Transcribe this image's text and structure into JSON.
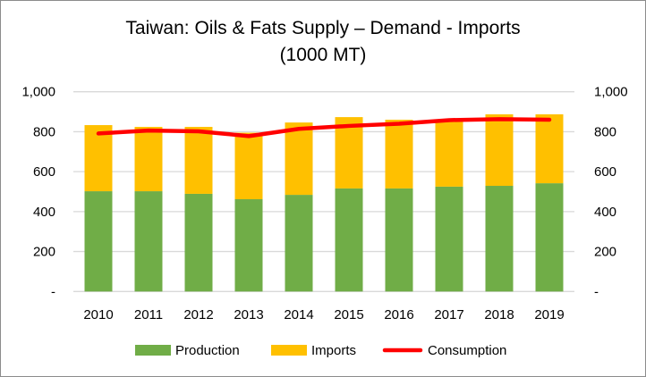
{
  "chart_data": {
    "type": "bar",
    "title": "Taiwan: Oils & Fats Supply – Demand - Imports",
    "subtitle": "(1000 MT)",
    "xlabel": "",
    "ylabel": "",
    "ylim": [
      0,
      1000
    ],
    "yticks": [
      0,
      200,
      400,
      600,
      800,
      1000
    ],
    "ytick_labels": [
      "-",
      "200",
      "400",
      "600",
      "800",
      "1,000"
    ],
    "grid": true,
    "legend_position": "bottom",
    "categories": [
      "2010",
      "2011",
      "2012",
      "2013",
      "2014",
      "2015",
      "2016",
      "2017",
      "2018",
      "2019"
    ],
    "series": [
      {
        "name": "Production",
        "kind": "stacked-bar",
        "color": "#70ad47",
        "values": [
          502,
          502,
          489,
          462,
          484,
          516,
          516,
          525,
          529,
          542
        ]
      },
      {
        "name": "Imports",
        "kind": "stacked-bar",
        "color": "#ffc000",
        "values": [
          331,
          322,
          335,
          333,
          362,
          357,
          344,
          332,
          358,
          345
        ]
      },
      {
        "name": "Consumption",
        "kind": "line",
        "color": "#ff0000",
        "values": [
          791,
          806,
          802,
          778,
          814,
          829,
          840,
          858,
          863,
          860
        ]
      }
    ]
  }
}
